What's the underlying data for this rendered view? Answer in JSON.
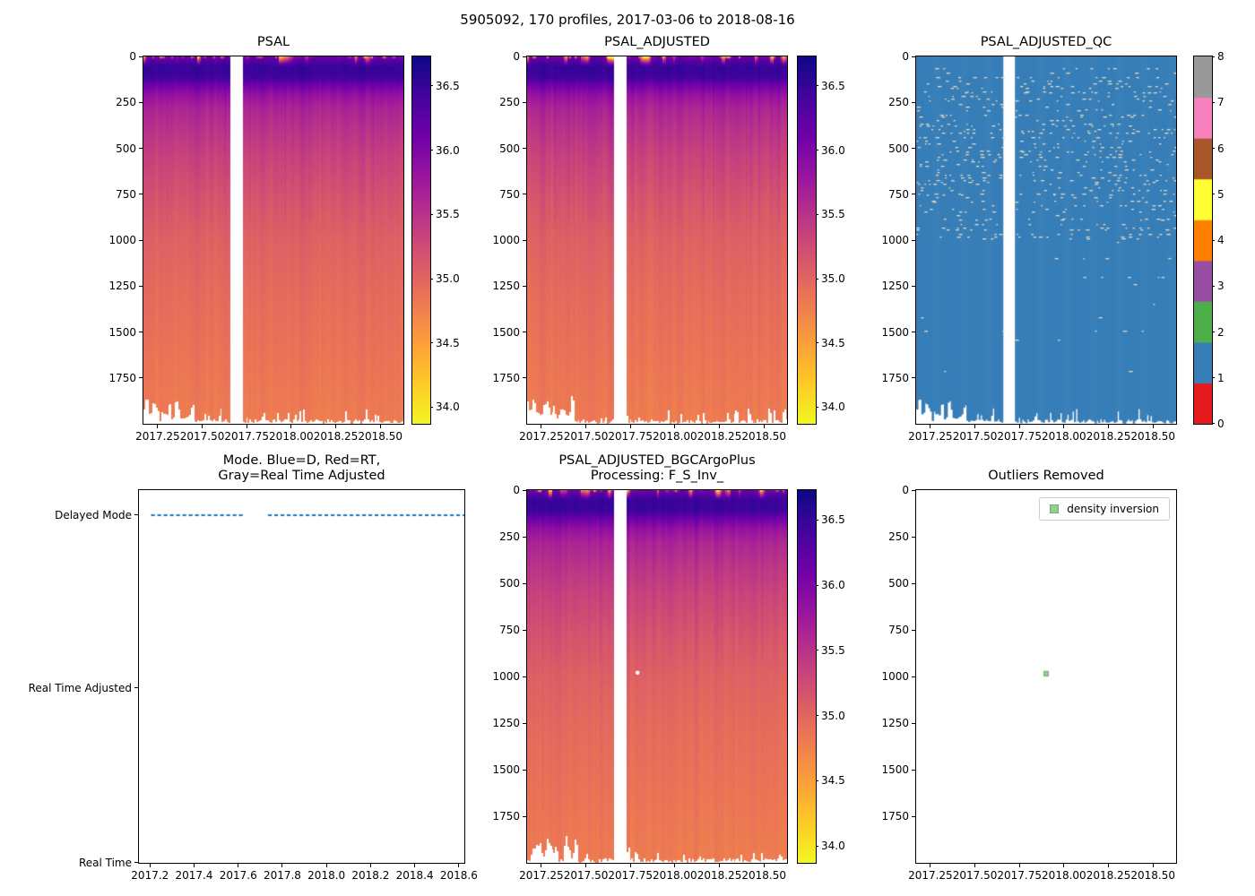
{
  "figure": {
    "title": "5905092, 170 profiles, 2017-03-06 to 2018-08-16",
    "background": "#ffffff"
  },
  "palette": {
    "heat_colormap_name": "plasma_r",
    "plasma_stops": [
      "#0d0887",
      "#46039f",
      "#7201a8",
      "#9c179e",
      "#bd3786",
      "#d8576b",
      "#ed7953",
      "#fb9f3a",
      "#fdca26",
      "#f0f921"
    ],
    "qc_colors": [
      "#e41a1c",
      "#377eb8",
      "#4daf4a",
      "#984ea3",
      "#ff7f00",
      "#ffff33",
      "#a65628",
      "#f781bf",
      "#999999"
    ],
    "qc_fill": "#377eb8",
    "qc_dash_color": "#e6d9bf",
    "mode_line_color": "#1f77b4",
    "outlier_marker_fill": "#92cf8e",
    "outlier_marker_edge": "#6fae6b"
  },
  "chart_data": [
    {
      "id": "psal",
      "type": "heatmap",
      "title": "PSAL",
      "x_range": [
        2017.17,
        2018.63
      ],
      "y_range": [
        0,
        2000
      ],
      "y_inverted": true,
      "x_ticks": [
        2017.25,
        2017.5,
        2017.75,
        2018.0,
        2018.25,
        2018.5
      ],
      "x_tick_labels": [
        "2017.25",
        "2017.50",
        "2017.75",
        "2018.00",
        "2018.25",
        "2018.50"
      ],
      "y_ticks": [
        0,
        250,
        500,
        750,
        1000,
        1250,
        1500,
        1750
      ],
      "y_tick_labels": [
        "0",
        "250",
        "500",
        "750",
        "1000",
        "1250",
        "1500",
        "1750"
      ],
      "colorbar": {
        "vmin": 33.87,
        "vmax": 36.73,
        "ticks": [
          34.0,
          34.5,
          35.0,
          35.5,
          36.0,
          36.5
        ],
        "tick_labels": [
          "34.0",
          "34.5",
          "35.0",
          "35.5",
          "36.0",
          "36.5"
        ]
      },
      "missing_time_gap": [
        2017.655,
        2017.725
      ],
      "representative_profile": {
        "depth_m": [
          0,
          30,
          60,
          115,
          160,
          210,
          280,
          400,
          550,
          750,
          1000,
          1300,
          1650,
          2000
        ],
        "psal_psu": [
          36.25,
          36.4,
          36.5,
          36.45,
          36.1,
          35.85,
          35.65,
          35.5,
          35.35,
          35.2,
          35.05,
          34.95,
          34.87,
          34.8
        ]
      },
      "surface_note": "intermittent fresh (~34 PSU, yellow) patches in upper 40 m; salinity maximum ~36.5 (dark) at 50-130 m; profiles reach ~1850-2000 m"
    },
    {
      "id": "psal_adjusted",
      "type": "heatmap",
      "title": "PSAL_ADJUSTED",
      "x_range": [
        2017.17,
        2018.63
      ],
      "y_range": [
        0,
        2000
      ],
      "y_inverted": true,
      "x_ticks": [
        2017.25,
        2017.5,
        2017.75,
        2018.0,
        2018.25,
        2018.5
      ],
      "x_tick_labels": [
        "2017.25",
        "2017.50",
        "2017.75",
        "2018.00",
        "2018.25",
        "2018.50"
      ],
      "y_ticks": [
        0,
        250,
        500,
        750,
        1000,
        1250,
        1500,
        1750
      ],
      "y_tick_labels": [
        "0",
        "250",
        "500",
        "750",
        "1000",
        "1250",
        "1500",
        "1750"
      ],
      "colorbar": {
        "vmin": 33.87,
        "vmax": 36.73,
        "ticks": [
          34.0,
          34.5,
          35.0,
          35.5,
          36.0,
          36.5
        ],
        "tick_labels": [
          "34.0",
          "34.5",
          "35.0",
          "35.5",
          "36.0",
          "36.5"
        ]
      },
      "missing_time_gap": [
        2017.655,
        2017.725
      ],
      "representative_profile": {
        "depth_m": [
          0,
          30,
          60,
          115,
          160,
          210,
          280,
          400,
          550,
          750,
          1000,
          1300,
          1650,
          2000
        ],
        "psal_psu": [
          36.25,
          36.4,
          36.5,
          36.45,
          36.1,
          35.85,
          35.65,
          35.5,
          35.35,
          35.2,
          35.05,
          34.95,
          34.87,
          34.8
        ]
      },
      "surface_note": "nearly identical to PSAL panel"
    },
    {
      "id": "psal_adjusted_qc",
      "type": "heatmap_discrete",
      "title": "PSAL_ADJUSTED_QC",
      "x_range": [
        2017.17,
        2018.63
      ],
      "y_range": [
        0,
        2000
      ],
      "y_inverted": true,
      "x_ticks": [
        2017.25,
        2017.5,
        2017.75,
        2018.0,
        2018.25,
        2018.5
      ],
      "x_tick_labels": [
        "2017.25",
        "2017.50",
        "2017.75",
        "2018.00",
        "2018.25",
        "2018.50"
      ],
      "y_ticks": [
        0,
        250,
        500,
        750,
        1000,
        1250,
        1500,
        1750
      ],
      "y_tick_labels": [
        "0",
        "250",
        "500",
        "750",
        "1000",
        "1250",
        "1500",
        "1750"
      ],
      "colorbar": {
        "levels": [
          0,
          1,
          2,
          3,
          4,
          5,
          6,
          7,
          8
        ],
        "tick_labels": [
          "0",
          "1",
          "2",
          "3",
          "4",
          "5",
          "6",
          "7",
          "8"
        ]
      },
      "dominant_value": 1,
      "missing_time_gap": [
        2017.655,
        2017.725
      ],
      "note": "nearly all samples flagged QC=1 (blue); scattered missing samples appear as small pale dashes, mostly above 1000 m"
    },
    {
      "id": "mode",
      "type": "scatter",
      "title_lines": [
        "Mode. Blue=D, Red=RT,",
        "Gray=Real Time Adjusted"
      ],
      "x_range": [
        2017.15,
        2018.625
      ],
      "x_ticks": [
        2017.2,
        2017.4,
        2017.6,
        2017.8,
        2018.0,
        2018.2,
        2018.4,
        2018.6
      ],
      "x_tick_labels": [
        "2017.2",
        "2017.4",
        "2017.6",
        "2017.8",
        "2018.0",
        "2018.2",
        "2018.4",
        "2018.6"
      ],
      "y_categories": [
        "Delayed Mode",
        "Real Time Adjusted",
        "Real Time"
      ],
      "series": [
        {
          "name": "profile-mode",
          "category": "Delayed Mode",
          "style": "dashed",
          "segments": [
            [
              2017.205,
              2017.625
            ],
            [
              2017.735,
              2018.62
            ]
          ]
        }
      ]
    },
    {
      "id": "bgc",
      "type": "heatmap",
      "title_lines": [
        "PSAL_ADJUSTED_BGCArgoPlus",
        "Processing: F_S_Inv_"
      ],
      "x_range": [
        2017.17,
        2018.63
      ],
      "y_range": [
        0,
        2000
      ],
      "y_inverted": true,
      "x_ticks": [
        2017.25,
        2017.5,
        2017.75,
        2018.0,
        2018.25,
        2018.5
      ],
      "x_tick_labels": [
        "2017.25",
        "2017.50",
        "2017.75",
        "2018.00",
        "2018.25",
        "2018.50"
      ],
      "y_ticks": [
        0,
        250,
        500,
        750,
        1000,
        1250,
        1500,
        1750
      ],
      "y_tick_labels": [
        "0",
        "250",
        "500",
        "750",
        "1000",
        "1250",
        "1500",
        "1750"
      ],
      "colorbar": {
        "vmin": 33.87,
        "vmax": 36.73,
        "ticks": [
          34.0,
          34.5,
          35.0,
          35.5,
          36.0,
          36.5
        ],
        "tick_labels": [
          "34.0",
          "34.5",
          "35.0",
          "35.5",
          "36.0",
          "36.5"
        ]
      },
      "missing_time_gap": [
        2017.655,
        2017.725
      ],
      "representative_profile": {
        "depth_m": [
          0,
          30,
          60,
          115,
          160,
          210,
          280,
          400,
          550,
          750,
          1000,
          1300,
          1650,
          2000
        ],
        "psal_psu": [
          36.25,
          36.4,
          36.5,
          36.45,
          36.1,
          35.85,
          35.65,
          35.5,
          35.35,
          35.2,
          35.05,
          34.95,
          34.87,
          34.8
        ]
      },
      "missing_point": {
        "x": 2017.79,
        "y": 980
      },
      "surface_note": "same field as PSAL_ADJUSTED with one removed sample (white dot) near 980 m"
    },
    {
      "id": "outliers",
      "type": "scatter_outliers",
      "title": "Outliers Removed",
      "x_range": [
        2017.17,
        2018.63
      ],
      "y_range": [
        0,
        2000
      ],
      "y_inverted": true,
      "x_ticks": [
        2017.25,
        2017.5,
        2017.75,
        2018.0,
        2018.25,
        2018.5
      ],
      "x_tick_labels": [
        "2017.25",
        "2017.50",
        "2017.75",
        "2018.00",
        "2018.25",
        "2018.50"
      ],
      "y_ticks": [
        0,
        250,
        500,
        750,
        1000,
        1250,
        1500,
        1750
      ],
      "y_tick_labels": [
        "0",
        "250",
        "500",
        "750",
        "1000",
        "1250",
        "1500",
        "1750"
      ],
      "legend": [
        {
          "label": "density inversion",
          "marker": "square"
        }
      ],
      "points": [
        {
          "x": 2017.9,
          "y": 985,
          "series": "density inversion"
        }
      ]
    }
  ]
}
